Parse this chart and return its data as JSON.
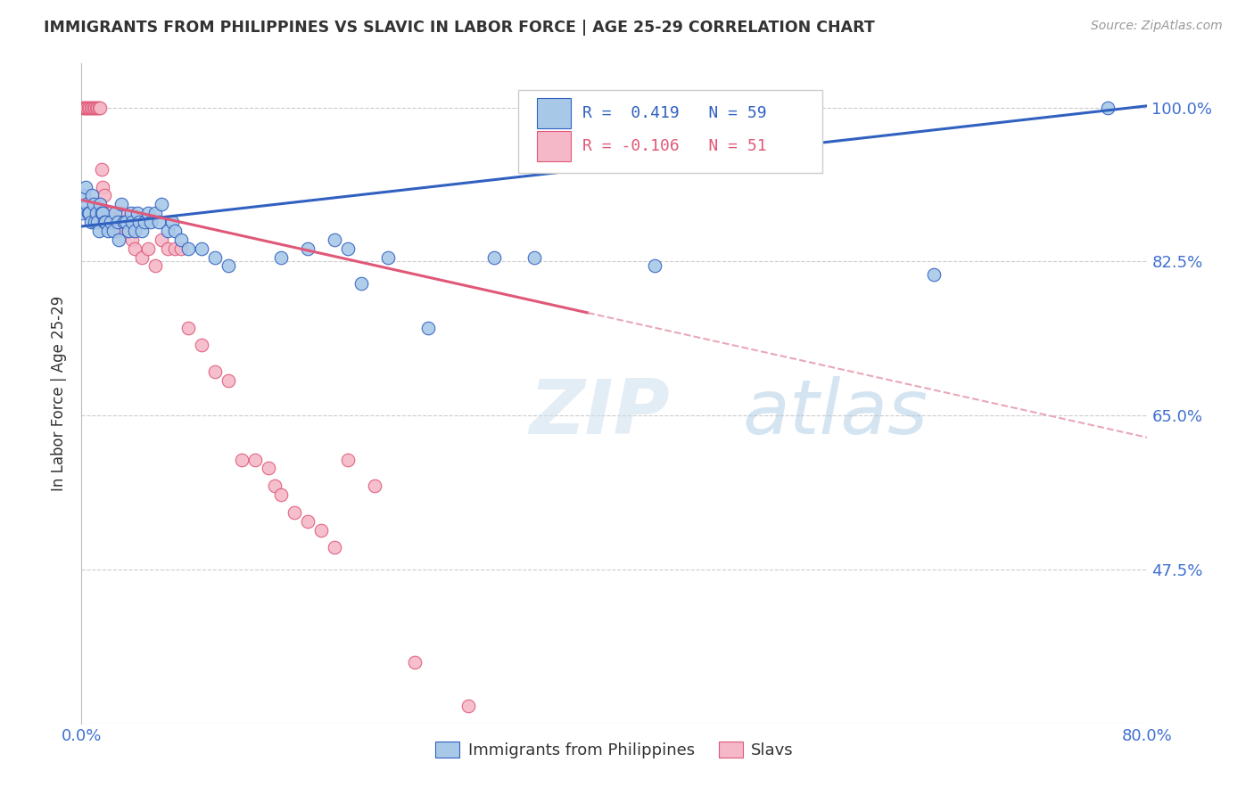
{
  "title": "IMMIGRANTS FROM PHILIPPINES VS SLAVIC IN LABOR FORCE | AGE 25-29 CORRELATION CHART",
  "source": "Source: ZipAtlas.com",
  "ylabel": "In Labor Force | Age 25-29",
  "watermark": "ZIPatlas",
  "r_blue": 0.419,
  "n_blue": 59,
  "r_pink": -0.106,
  "n_pink": 51,
  "x_min": 0.0,
  "x_max": 0.8,
  "y_min": 0.3,
  "y_max": 1.05,
  "yticks": [
    0.475,
    0.65,
    0.825,
    1.0
  ],
  "ytick_labels": [
    "47.5%",
    "65.0%",
    "82.5%",
    "100.0%"
  ],
  "xticks": [
    0.0,
    0.1,
    0.2,
    0.3,
    0.4,
    0.5,
    0.6,
    0.7,
    0.8
  ],
  "xtick_labels": [
    "0.0%",
    "",
    "",
    "",
    "",
    "",
    "",
    "",
    "80.0%"
  ],
  "blue_color": "#a8c8e8",
  "pink_color": "#f4b8c8",
  "blue_line_color": "#3060c0",
  "pink_line_color": "#e05878",
  "pink_dashed_color": "#e8a8b8",
  "axis_color": "#4070d0",
  "title_color": "#333333",
  "grid_color": "#cccccc",
  "blue_scatter": [
    [
      0.001,
      0.88
    ],
    [
      0.002,
      0.9
    ],
    [
      0.003,
      0.91
    ],
    [
      0.004,
      0.89
    ],
    [
      0.005,
      0.88
    ],
    [
      0.006,
      0.88
    ],
    [
      0.007,
      0.87
    ],
    [
      0.008,
      0.9
    ],
    [
      0.009,
      0.89
    ],
    [
      0.01,
      0.87
    ],
    [
      0.011,
      0.88
    ],
    [
      0.012,
      0.87
    ],
    [
      0.013,
      0.86
    ],
    [
      0.014,
      0.89
    ],
    [
      0.015,
      0.88
    ],
    [
      0.016,
      0.88
    ],
    [
      0.017,
      0.87
    ],
    [
      0.018,
      0.87
    ],
    [
      0.02,
      0.86
    ],
    [
      0.022,
      0.87
    ],
    [
      0.024,
      0.86
    ],
    [
      0.025,
      0.88
    ],
    [
      0.027,
      0.87
    ],
    [
      0.028,
      0.85
    ],
    [
      0.03,
      0.89
    ],
    [
      0.032,
      0.87
    ],
    [
      0.033,
      0.87
    ],
    [
      0.035,
      0.86
    ],
    [
      0.037,
      0.88
    ],
    [
      0.038,
      0.87
    ],
    [
      0.04,
      0.86
    ],
    [
      0.042,
      0.88
    ],
    [
      0.043,
      0.87
    ],
    [
      0.045,
      0.86
    ],
    [
      0.047,
      0.87
    ],
    [
      0.05,
      0.88
    ],
    [
      0.052,
      0.87
    ],
    [
      0.055,
      0.88
    ],
    [
      0.058,
      0.87
    ],
    [
      0.06,
      0.89
    ],
    [
      0.065,
      0.86
    ],
    [
      0.068,
      0.87
    ],
    [
      0.07,
      0.86
    ],
    [
      0.075,
      0.85
    ],
    [
      0.08,
      0.84
    ],
    [
      0.09,
      0.84
    ],
    [
      0.1,
      0.83
    ],
    [
      0.11,
      0.82
    ],
    [
      0.15,
      0.83
    ],
    [
      0.17,
      0.84
    ],
    [
      0.19,
      0.85
    ],
    [
      0.2,
      0.84
    ],
    [
      0.21,
      0.8
    ],
    [
      0.23,
      0.83
    ],
    [
      0.26,
      0.75
    ],
    [
      0.31,
      0.83
    ],
    [
      0.34,
      0.83
    ],
    [
      0.43,
      0.82
    ],
    [
      0.64,
      0.81
    ],
    [
      0.77,
      1.0
    ]
  ],
  "pink_scatter": [
    [
      0.001,
      1.0
    ],
    [
      0.002,
      1.0
    ],
    [
      0.003,
      1.0
    ],
    [
      0.004,
      1.0
    ],
    [
      0.005,
      1.0
    ],
    [
      0.006,
      1.0
    ],
    [
      0.007,
      1.0
    ],
    [
      0.008,
      1.0
    ],
    [
      0.009,
      1.0
    ],
    [
      0.01,
      1.0
    ],
    [
      0.011,
      1.0
    ],
    [
      0.012,
      1.0
    ],
    [
      0.013,
      1.0
    ],
    [
      0.014,
      1.0
    ],
    [
      0.015,
      0.93
    ],
    [
      0.016,
      0.91
    ],
    [
      0.017,
      0.9
    ],
    [
      0.018,
      0.88
    ],
    [
      0.02,
      0.87
    ],
    [
      0.022,
      0.88
    ],
    [
      0.025,
      0.87
    ],
    [
      0.027,
      0.86
    ],
    [
      0.03,
      0.88
    ],
    [
      0.033,
      0.87
    ],
    [
      0.035,
      0.86
    ],
    [
      0.038,
      0.85
    ],
    [
      0.04,
      0.84
    ],
    [
      0.045,
      0.83
    ],
    [
      0.05,
      0.84
    ],
    [
      0.055,
      0.82
    ],
    [
      0.06,
      0.85
    ],
    [
      0.065,
      0.84
    ],
    [
      0.07,
      0.84
    ],
    [
      0.075,
      0.84
    ],
    [
      0.08,
      0.75
    ],
    [
      0.09,
      0.73
    ],
    [
      0.1,
      0.7
    ],
    [
      0.11,
      0.69
    ],
    [
      0.12,
      0.6
    ],
    [
      0.13,
      0.6
    ],
    [
      0.14,
      0.59
    ],
    [
      0.145,
      0.57
    ],
    [
      0.15,
      0.56
    ],
    [
      0.16,
      0.54
    ],
    [
      0.17,
      0.53
    ],
    [
      0.18,
      0.52
    ],
    [
      0.19,
      0.5
    ],
    [
      0.2,
      0.6
    ],
    [
      0.22,
      0.57
    ],
    [
      0.25,
      0.37
    ],
    [
      0.29,
      0.32
    ]
  ],
  "legend_blue_label": "Immigrants from Philippines",
  "legend_pink_label": "Slavs",
  "figsize": [
    14.06,
    8.92
  ],
  "dpi": 100
}
